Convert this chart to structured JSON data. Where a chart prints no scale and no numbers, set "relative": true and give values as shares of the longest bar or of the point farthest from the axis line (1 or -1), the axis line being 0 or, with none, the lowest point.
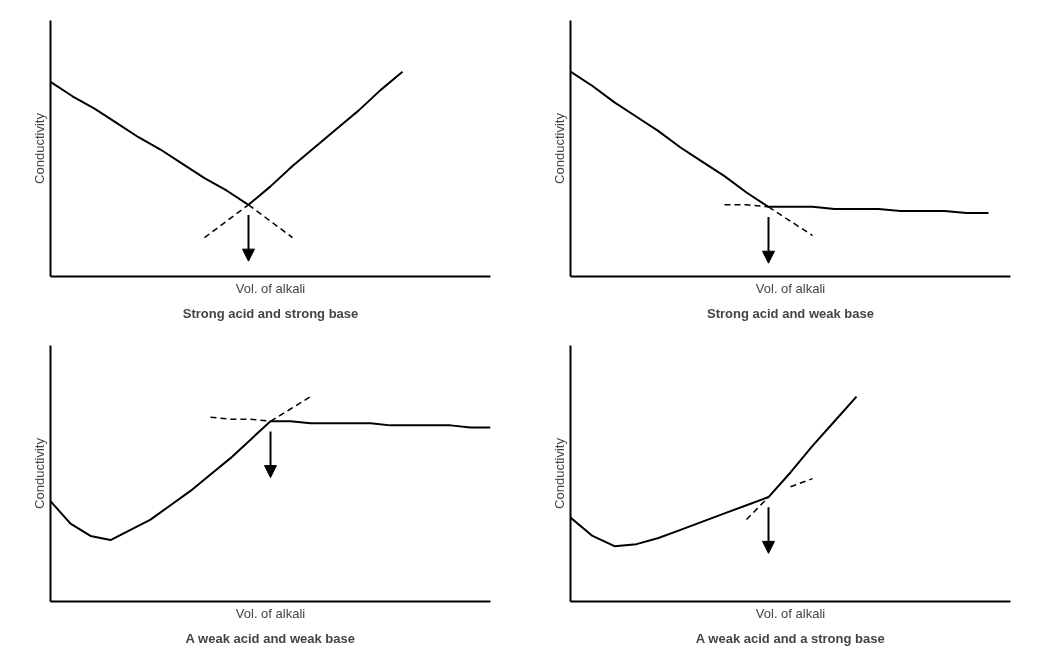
{
  "chart_data": [
    {
      "type": "line",
      "title": "Strong acid and strong base",
      "xlabel": "Vol. of alkali",
      "ylabel": "Conductivity",
      "relative": true,
      "categories": [
        null,
        null,
        null,
        null,
        null,
        null,
        null,
        null,
        null,
        null,
        null,
        null,
        null,
        null,
        null,
        null,
        null,
        null,
        null,
        null,
        null
      ],
      "series": [
        {
          "color": "#000000",
          "values": [
            0.95,
            0.88,
            0.82,
            0.75,
            0.68,
            0.62,
            0.55,
            0.48,
            0.42,
            0.35,
            0.44,
            0.54,
            0.63,
            0.72,
            0.81,
            0.91,
            1.0,
            null,
            null,
            null,
            null
          ]
        },
        {
          "color": "#000000",
          "line_style": "dashed",
          "values": [
            null,
            null,
            null,
            null,
            null,
            null,
            null,
            0.19,
            0.27,
            0.35,
            null,
            null,
            null,
            null,
            null,
            null,
            null,
            null,
            null,
            null,
            null
          ]
        },
        {
          "color": "#000000",
          "line_style": "dashed",
          "values": [
            null,
            null,
            null,
            null,
            null,
            null,
            null,
            null,
            null,
            0.35,
            0.27,
            0.19,
            null,
            null,
            null,
            null,
            null,
            null,
            null,
            null,
            null
          ]
        }
      ]
    },
    {
      "type": "line",
      "title": "Strong acid and weak base",
      "xlabel": "Vol. of alkali",
      "ylabel": "Conductivity",
      "relative": true,
      "categories": [
        null,
        null,
        null,
        null,
        null,
        null,
        null,
        null,
        null,
        null,
        null,
        null,
        null,
        null,
        null,
        null,
        null,
        null,
        null,
        null,
        null
      ],
      "series": [
        {
          "color": "#000000",
          "values": [
            1.0,
            0.93,
            0.85,
            0.78,
            0.71,
            0.63,
            0.56,
            0.49,
            0.41,
            0.34,
            0.34,
            0.34,
            0.33,
            0.33,
            0.33,
            0.32,
            0.32,
            0.32,
            0.31,
            0.31,
            null
          ]
        },
        {
          "color": "#000000",
          "line_style": "dashed",
          "values": [
            null,
            null,
            null,
            null,
            null,
            null,
            null,
            0.35,
            0.35,
            0.34,
            null,
            null,
            null,
            null,
            null,
            null,
            null,
            null,
            null,
            null,
            null
          ]
        },
        {
          "color": "#000000",
          "line_style": "dashed",
          "values": [
            null,
            null,
            null,
            null,
            null,
            null,
            null,
            null,
            null,
            0.34,
            0.27,
            0.2,
            null,
            null,
            null,
            null,
            null,
            null,
            null,
            null,
            null
          ]
        }
      ]
    },
    {
      "type": "line",
      "title": "A weak acid and weak base",
      "xlabel": "Vol. of alkali",
      "ylabel": "Conductivity",
      "relative": true,
      "categories": [
        null,
        null,
        null,
        null,
        null,
        null,
        null,
        null,
        null,
        null,
        null,
        null,
        null,
        null,
        null,
        null,
        null,
        null,
        null,
        null,
        null,
        null,
        null
      ],
      "series": [
        {
          "color": "#000000",
          "values": [
            0.49,
            0.38,
            0.32,
            0.3,
            0.35,
            0.4,
            0.47,
            0.54,
            0.62,
            0.7,
            0.79,
            0.88,
            0.88,
            0.87,
            0.87,
            0.87,
            0.87,
            0.86,
            0.86,
            0.86,
            0.86,
            0.85,
            0.85
          ]
        },
        {
          "color": "#000000",
          "line_style": "dashed",
          "values": [
            null,
            null,
            null,
            null,
            null,
            null,
            null,
            null,
            0.9,
            0.89,
            0.89,
            0.88,
            null,
            null,
            null,
            null,
            null,
            null,
            null,
            null,
            null,
            null,
            null
          ]
        },
        {
          "color": "#000000",
          "line_style": "dashed",
          "values": [
            null,
            null,
            null,
            null,
            null,
            null,
            null,
            null,
            null,
            null,
            null,
            0.88,
            0.94,
            1.0,
            null,
            null,
            null,
            null,
            null,
            null,
            null,
            null,
            null
          ]
        }
      ]
    },
    {
      "type": "line",
      "title": "A weak acid and a strong base",
      "xlabel": "Vol. of alkali",
      "ylabel": "Conductivity",
      "relative": true,
      "categories": [
        null,
        null,
        null,
        null,
        null,
        null,
        null,
        null,
        null,
        null,
        null,
        null,
        null,
        null,
        null,
        null,
        null,
        null,
        null,
        null,
        null
      ],
      "series": [
        {
          "color": "#000000",
          "values": [
            0.41,
            0.32,
            0.27,
            0.28,
            0.31,
            0.35,
            0.39,
            0.43,
            0.47,
            0.51,
            0.63,
            0.76,
            0.88,
            1.0,
            null,
            null,
            null,
            null,
            null,
            null,
            null
          ]
        },
        {
          "color": "#000000",
          "line_style": "dashed",
          "values": [
            null,
            null,
            null,
            null,
            null,
            null,
            null,
            null,
            0.4,
            0.51,
            null,
            null,
            null,
            null,
            null,
            null,
            null,
            null,
            null,
            null,
            null
          ]
        },
        {
          "color": "#000000",
          "line_style": "dashed",
          "values": [
            null,
            null,
            null,
            null,
            null,
            null,
            null,
            null,
            null,
            null,
            0.56,
            0.6,
            null,
            null,
            null,
            null,
            null,
            null,
            null,
            null,
            null
          ]
        }
      ]
    }
  ]
}
